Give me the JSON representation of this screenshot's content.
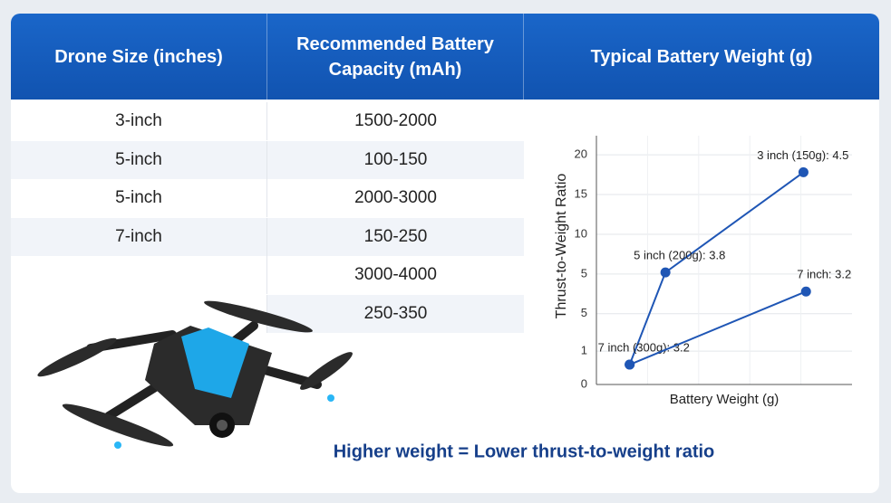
{
  "table": {
    "columns": [
      "Drone Size (inches)",
      "Recommended Battery Capacity (mAh)",
      "Typical Battery Weight (g)"
    ],
    "rows": [
      {
        "size": "3-inch",
        "capacity": "1500-2000"
      },
      {
        "size": "5-inch",
        "capacity": "100-150"
      },
      {
        "size": "5-inch",
        "capacity": "2000-3000"
      },
      {
        "size": "7-inch",
        "capacity": "150-250"
      },
      {
        "capacity": "3000-4000"
      },
      {
        "capacity": "250-350"
      }
    ]
  },
  "chart_data": {
    "type": "line",
    "ylabel": "Thrust-to-Weight Ratio",
    "xlabel": "Battery Weight (g)",
    "xlim": [
      0,
      10
    ],
    "ylim": [
      -8.9,
      22.4
    ],
    "yticks": [
      20,
      15,
      10,
      5,
      {
        "value": 0,
        "label": "5"
      },
      {
        "value": -4.7,
        "label": "1"
      },
      {
        "value": -8.9,
        "label": "0"
      }
    ],
    "grid": true,
    "series": [
      {
        "color": "#1f56b5",
        "x": [
          1.3,
          2.7,
          8.1
        ],
        "values": [
          -6.4,
          5.2,
          17.8
        ],
        "point_labels": [
          "7 inch (300g): 3.2",
          "5 inch (200g): 3.8",
          "3 inch (150g): 4.5"
        ]
      },
      {
        "color": "#1f56b5",
        "x": [
          1.3,
          8.2
        ],
        "values": [
          -6.4,
          2.8
        ],
        "point_labels": [
          null,
          "7 inch: 3.2"
        ]
      }
    ]
  },
  "caption": "Higher weight = Lower thrust-to-weight ratio"
}
